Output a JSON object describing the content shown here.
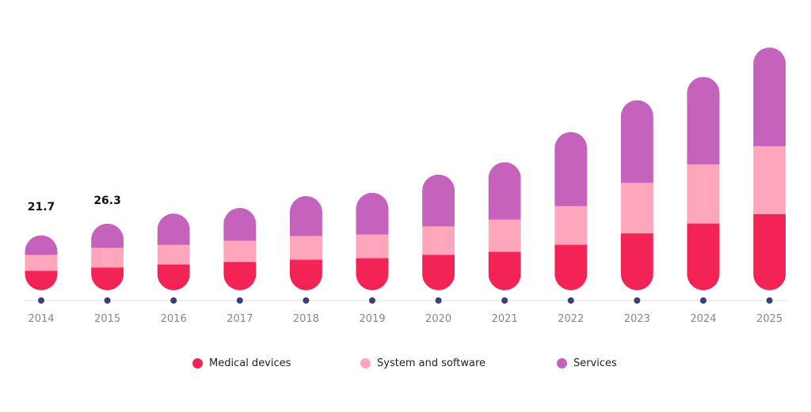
{
  "chart_data": {
    "type": "bar",
    "stacked": true,
    "title": "",
    "xlabel": "",
    "ylabel": "",
    "categories": [
      "2014",
      "2015",
      "2016",
      "2017",
      "2018",
      "2019",
      "2020",
      "2021",
      "2022",
      "2023",
      "2024",
      "2025"
    ],
    "series": [
      {
        "name": "Medical devices",
        "color": "#F42355",
        "values": [
          7.8,
          9.1,
          10.3,
          11.3,
          12.2,
          12.8,
          14.1,
          15.3,
          18.1,
          22.6,
          26.5,
          30.2
        ]
      },
      {
        "name": "System and software",
        "color": "#FFA6BC",
        "values": [
          6.3,
          7.8,
          7.8,
          8.4,
          9.4,
          9.4,
          11.3,
          12.8,
          15.3,
          20.0,
          23.4,
          26.9
        ]
      },
      {
        "name": "Services",
        "color": "#C462BC",
        "values": [
          7.6,
          9.4,
          12.2,
          12.8,
          15.6,
          16.3,
          20.3,
          22.5,
          29.1,
          32.5,
          34.4,
          38.8
        ]
      }
    ],
    "totals": [
      21.7,
      26.3,
      null,
      null,
      null,
      null,
      null,
      null,
      null,
      null,
      null,
      null
    ],
    "data_labels": [
      {
        "category": "2014",
        "text": "21.7"
      },
      {
        "category": "2015",
        "text": "26.3"
      }
    ],
    "legend_position": "bottom",
    "grid": false,
    "ylim": [
      0,
      100
    ]
  },
  "axis": {
    "dot_color": "#3C3F7E",
    "line_color": "#EEEEEE"
  }
}
